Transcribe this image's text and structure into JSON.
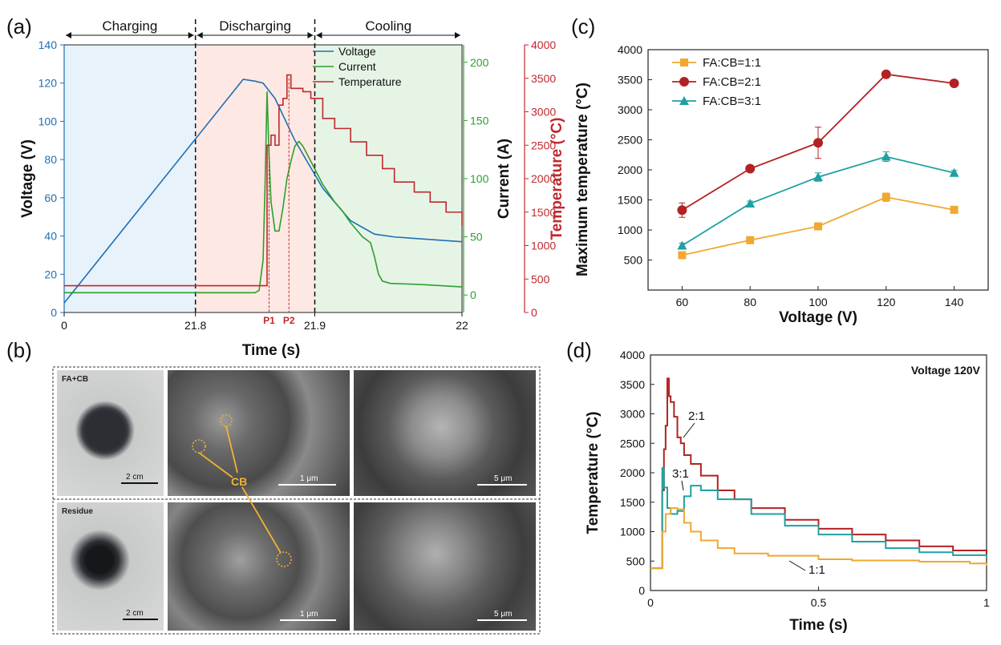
{
  "panel_labels": {
    "a": "(a)",
    "b": "(b)",
    "c": "(c)",
    "d": "(d)"
  },
  "colors": {
    "voltage": "#1f6fb5",
    "current": "#2ca02c",
    "temperature": "#c0282d",
    "ratio11": "#f0a830",
    "ratio21": "#b22222",
    "ratio31": "#20a0a0"
  },
  "chart_data": [
    {
      "id": "a",
      "type": "line",
      "xlabel": "Time (s)",
      "ylabel_left": "Voltage (V)",
      "ylabel_right1": "Current (A)",
      "ylabel_right2": "Temperature (°C)",
      "x_tick_labels": [
        "0",
        "21.8",
        "21.9",
        "22"
      ],
      "y_left_range": [
        0,
        140
      ],
      "y_left_ticks": [
        0,
        20,
        40,
        60,
        80,
        100,
        120,
        140
      ],
      "y_current_range": [
        -15,
        215
      ],
      "y_current_ticks": [
        0,
        50,
        100,
        150,
        200
      ],
      "y_temp_range": [
        0,
        4000
      ],
      "y_temp_ticks": [
        0,
        500,
        1000,
        1500,
        2000,
        2500,
        3000,
        3500,
        4000
      ],
      "phases": [
        {
          "name": "Charging"
        },
        {
          "name": "Discharging"
        },
        {
          "name": "Cooling"
        }
      ],
      "markers": [
        "P1",
        "P2"
      ],
      "legend_position": "top-right",
      "series": [
        {
          "name": "Voltage",
          "axis": "left",
          "points": [
            [
              0,
              5
            ],
            [
              0.45,
              122
            ],
            [
              0.48,
              121
            ],
            [
              0.5,
              120
            ],
            [
              0.53,
              112
            ],
            [
              0.58,
              90
            ],
            [
              0.65,
              65
            ],
            [
              0.72,
              48
            ],
            [
              0.78,
              41
            ],
            [
              0.83,
              39.5
            ],
            [
              1.0,
              37
            ]
          ]
        },
        {
          "name": "Current",
          "axis": "right1",
          "points": [
            [
              0,
              2
            ],
            [
              0.48,
              2
            ],
            [
              0.49,
              4
            ],
            [
              0.5,
              30
            ],
            [
              0.505,
              95
            ],
            [
              0.51,
              175
            ],
            [
              0.515,
              120
            ],
            [
              0.52,
              80
            ],
            [
              0.53,
              55
            ],
            [
              0.54,
              55
            ],
            [
              0.55,
              75
            ],
            [
              0.56,
              100
            ],
            [
              0.57,
              115
            ],
            [
              0.58,
              128
            ],
            [
              0.59,
              132
            ],
            [
              0.6,
              128
            ],
            [
              0.62,
              115
            ],
            [
              0.65,
              95
            ],
            [
              0.68,
              80
            ],
            [
              0.7,
              72
            ],
            [
              0.72,
              62
            ],
            [
              0.75,
              50
            ],
            [
              0.77,
              45
            ],
            [
              0.78,
              33
            ],
            [
              0.79,
              18
            ],
            [
              0.8,
              12
            ],
            [
              0.82,
              10
            ],
            [
              0.9,
              9
            ],
            [
              1.0,
              7
            ]
          ]
        },
        {
          "name": "Temperature",
          "axis": "right2",
          "points": [
            [
              0,
              400
            ],
            [
              0.5,
              400
            ],
            [
              0.51,
              2500
            ],
            [
              0.52,
              2650
            ],
            [
              0.53,
              2500
            ],
            [
              0.54,
              3100
            ],
            [
              0.55,
              3200
            ],
            [
              0.56,
              3550
            ],
            [
              0.57,
              3350
            ],
            [
              0.6,
              3300
            ],
            [
              0.62,
              3200
            ],
            [
              0.65,
              2900
            ],
            [
              0.68,
              2750
            ],
            [
              0.72,
              2550
            ],
            [
              0.76,
              2350
            ],
            [
              0.8,
              2150
            ],
            [
              0.83,
              1950
            ],
            [
              0.88,
              1800
            ],
            [
              0.92,
              1650
            ],
            [
              0.96,
              1500
            ],
            [
              1.0,
              1300
            ]
          ]
        }
      ]
    },
    {
      "id": "c",
      "type": "line",
      "xlabel": "Voltage (V)",
      "ylabel": "Maximum temperature (°C)",
      "x": [
        60,
        80,
        100,
        120,
        140
      ],
      "xlim": [
        50,
        150
      ],
      "ylim": [
        0,
        4000
      ],
      "x_ticks": [
        60,
        80,
        100,
        120,
        140
      ],
      "y_ticks": [
        500,
        1000,
        1500,
        2000,
        2500,
        3000,
        3500,
        4000
      ],
      "legend_position": "top-left",
      "series": [
        {
          "name": "FA:CB=1:1",
          "marker": "square",
          "values": [
            580,
            830,
            1060,
            1545,
            1335
          ],
          "errors": [
            40,
            40,
            40,
            70,
            40
          ]
        },
        {
          "name": "FA:CB=2:1",
          "marker": "circle",
          "values": [
            1330,
            2020,
            2450,
            3590,
            3440
          ],
          "errors": [
            120,
            30,
            260,
            40,
            30
          ]
        },
        {
          "name": "FA:CB=3:1",
          "marker": "triangle",
          "values": [
            740,
            1440,
            1880,
            2220,
            1950
          ],
          "errors": [
            40,
            40,
            70,
            80,
            40
          ]
        }
      ]
    },
    {
      "id": "d",
      "type": "line",
      "annotation": "Voltage 120V",
      "xlabel": "Time (s)",
      "ylabel": "Temperature (°C)",
      "xlim": [
        0,
        1
      ],
      "ylim": [
        0,
        4000
      ],
      "x_ticks": [
        0,
        0.5,
        1
      ],
      "x_tick_labels": [
        "0",
        "0.5",
        "1"
      ],
      "y_ticks": [
        0,
        500,
        1000,
        1500,
        2000,
        2500,
        3000,
        3500,
        4000
      ],
      "series": [
        {
          "name": "2:1",
          "label": "2:1",
          "points": [
            [
              0,
              380
            ],
            [
              0.03,
              380
            ],
            [
              0.035,
              1700
            ],
            [
              0.04,
              2400
            ],
            [
              0.045,
              2800
            ],
            [
              0.05,
              3600
            ],
            [
              0.055,
              3300
            ],
            [
              0.06,
              3200
            ],
            [
              0.07,
              2950
            ],
            [
              0.08,
              2600
            ],
            [
              0.09,
              2500
            ],
            [
              0.1,
              2300
            ],
            [
              0.12,
              2150
            ],
            [
              0.15,
              1950
            ],
            [
              0.2,
              1700
            ],
            [
              0.25,
              1550
            ],
            [
              0.3,
              1400
            ],
            [
              0.4,
              1200
            ],
            [
              0.5,
              1050
            ],
            [
              0.6,
              950
            ],
            [
              0.7,
              850
            ],
            [
              0.8,
              750
            ],
            [
              0.9,
              680
            ],
            [
              1.0,
              600
            ]
          ]
        },
        {
          "name": "3:1",
          "label": "3:1",
          "points": [
            [
              0,
              380
            ],
            [
              0.03,
              380
            ],
            [
              0.035,
              2080
            ],
            [
              0.04,
              1750
            ],
            [
              0.05,
              1400
            ],
            [
              0.06,
              1300
            ],
            [
              0.08,
              1350
            ],
            [
              0.1,
              1600
            ],
            [
              0.12,
              1780
            ],
            [
              0.15,
              1700
            ],
            [
              0.2,
              1550
            ],
            [
              0.3,
              1300
            ],
            [
              0.4,
              1100
            ],
            [
              0.5,
              950
            ],
            [
              0.6,
              830
            ],
            [
              0.7,
              720
            ],
            [
              0.8,
              650
            ],
            [
              0.9,
              600
            ],
            [
              1.0,
              560
            ]
          ]
        },
        {
          "name": "1:1",
          "label": "1:1",
          "points": [
            [
              0,
              380
            ],
            [
              0.03,
              380
            ],
            [
              0.035,
              1000
            ],
            [
              0.045,
              1300
            ],
            [
              0.06,
              1400
            ],
            [
              0.08,
              1380
            ],
            [
              0.1,
              1150
            ],
            [
              0.12,
              1000
            ],
            [
              0.15,
              850
            ],
            [
              0.2,
              720
            ],
            [
              0.25,
              630
            ],
            [
              0.35,
              590
            ],
            [
              0.5,
              530
            ],
            [
              0.6,
              510
            ],
            [
              0.8,
              490
            ],
            [
              0.95,
              460
            ],
            [
              1.0,
              420
            ]
          ]
        }
      ]
    }
  ],
  "panel_b": {
    "row_labels": [
      "FA+CB",
      "Residue"
    ],
    "cb_label": "CB",
    "scale_labels": [
      "2 cm",
      "1 μm",
      "5 μm",
      "2 cm",
      "1 μm",
      "5 μm"
    ]
  }
}
